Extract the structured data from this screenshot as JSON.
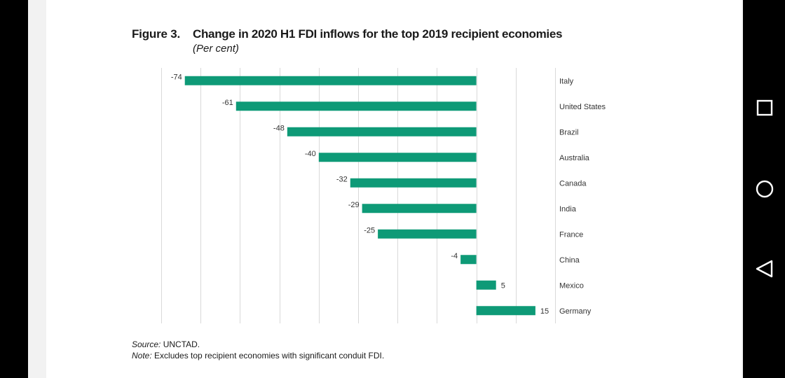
{
  "figure": {
    "label": "Figure 3.",
    "title": "Change in 2020 H1 FDI inflows for the top 2019 recipient economies",
    "subtitle": "(Per cent)"
  },
  "footer": {
    "source_label": "Source:",
    "source_text": " UNCTAD.",
    "note_label": "Note:",
    "note_text": " Excludes top recipient economies with significant conduit FDI."
  },
  "chart_data": {
    "type": "bar",
    "orientation": "horizontal",
    "categories": [
      "Italy",
      "United States",
      "Brazil",
      "Australia",
      "Canada",
      "India",
      "France",
      "China",
      "Mexico",
      "Germany"
    ],
    "values": [
      -74,
      -61,
      -48,
      -40,
      -32,
      -29,
      -25,
      -4,
      5,
      15
    ],
    "data_labels": [
      "-74",
      "-61",
      "-48",
      "-40",
      "-32",
      "-29",
      "-25",
      "-4",
      "5",
      "15"
    ],
    "xlim": [
      -80,
      20
    ],
    "grid": true,
    "bar_color": "#0e9a77",
    "grid_color": "#d9d9d9",
    "category_label_side": "right"
  },
  "navbar": {
    "buttons": [
      "recent-apps",
      "home",
      "back"
    ],
    "icon_color": "#ffffff"
  }
}
